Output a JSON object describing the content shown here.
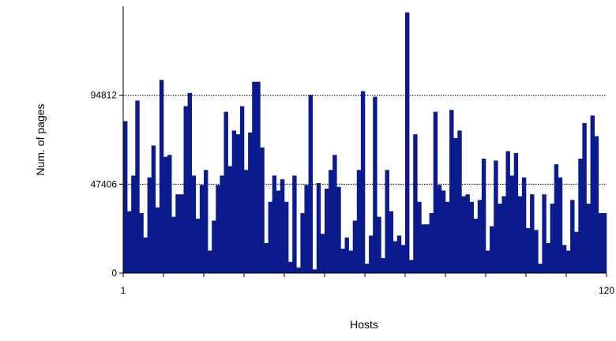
{
  "chart_data": {
    "type": "bar",
    "title": "",
    "xlabel": "Hosts",
    "ylabel": "Num. of pages",
    "ylim": [
      0,
      142218
    ],
    "xlim": [
      1,
      120
    ],
    "y_ticks": [
      "0",
      "47406",
      "94812"
    ],
    "x_tick_labels": [
      "1",
      "120"
    ],
    "grid": "horizontal-dotted",
    "bar_color": "#0b1a8c",
    "x": [
      1,
      2,
      3,
      4,
      5,
      6,
      7,
      8,
      9,
      10,
      11,
      12,
      13,
      14,
      15,
      16,
      17,
      18,
      19,
      20,
      21,
      22,
      23,
      24,
      25,
      26,
      27,
      28,
      29,
      30,
      31,
      32,
      33,
      34,
      35,
      36,
      37,
      38,
      39,
      40,
      41,
      42,
      43,
      44,
      45,
      46,
      47,
      48,
      49,
      50,
      51,
      52,
      53,
      54,
      55,
      56,
      57,
      58,
      59,
      60,
      61,
      62,
      63,
      64,
      65,
      66,
      67,
      68,
      69,
      70,
      71,
      72,
      73,
      74,
      75,
      76,
      77,
      78,
      79,
      80,
      81,
      82,
      83,
      84,
      85,
      86,
      87,
      88,
      89,
      90,
      91,
      92,
      93,
      94,
      95,
      96,
      97,
      98,
      99,
      100,
      101,
      102,
      103,
      104,
      105,
      106,
      107,
      108,
      109,
      110,
      111,
      112,
      113,
      114,
      115,
      116,
      117,
      118,
      119,
      120
    ],
    "values": [
      81000,
      33000,
      52000,
      92000,
      32000,
      19000,
      51000,
      68000,
      35000,
      103000,
      62000,
      63000,
      30000,
      42000,
      42000,
      89000,
      96000,
      52000,
      29000,
      47000,
      55000,
      12000,
      28000,
      47000,
      52000,
      86000,
      57000,
      76000,
      74000,
      89000,
      55000,
      75000,
      102000,
      102000,
      67000,
      16000,
      38000,
      52000,
      44000,
      50000,
      38000,
      6000,
      52000,
      3000,
      32000,
      47000,
      95000,
      2000,
      48000,
      21000,
      45000,
      55000,
      63000,
      46000,
      13000,
      19000,
      12000,
      28000,
      55000,
      97000,
      5000,
      20000,
      94000,
      30000,
      8000,
      55000,
      33000,
      17000,
      20000,
      15000,
      139000,
      7000,
      74000,
      38000,
      26000,
      26000,
      32000,
      86000,
      47000,
      44000,
      38000,
      87000,
      72000,
      76000,
      41000,
      42000,
      38000,
      29000,
      39000,
      61000,
      12000,
      25000,
      60000,
      37000,
      41000,
      65000,
      52000,
      64000,
      41000,
      51000,
      24000,
      42000,
      23000,
      5000,
      42000,
      16000,
      37000,
      58000,
      51000,
      15000,
      12000,
      39000,
      22000,
      61000,
      80000,
      37000,
      84000,
      73000,
      32000,
      32000
    ]
  }
}
